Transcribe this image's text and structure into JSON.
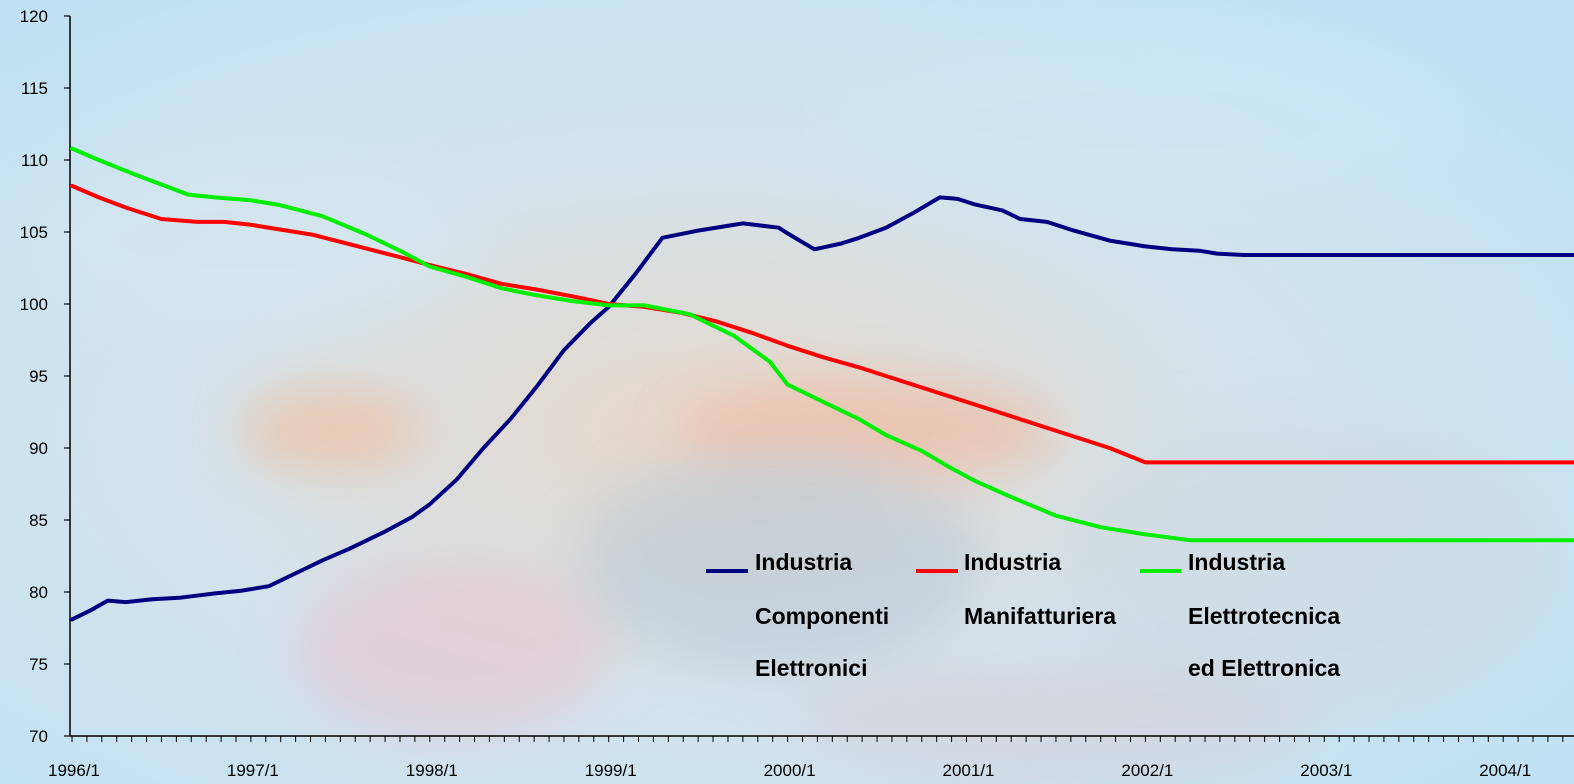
{
  "chart_data": {
    "type": "line",
    "title": "",
    "xlabel": "",
    "ylabel": "",
    "ylim": [
      70,
      120
    ],
    "y_ticks": [
      "70",
      "75",
      "80",
      "85",
      "90",
      "95",
      "100",
      "105",
      "110",
      "115",
      "120"
    ],
    "x_tick_labels": [
      "1996/1",
      "1997/1",
      "1998/1",
      "1999/1",
      "2000/1",
      "2001/1",
      "2002/1",
      "2003/1",
      "2004/1"
    ],
    "x_range": [
      1996.0,
      2004.7
    ],
    "grid": false,
    "legend_position": "bottom-center",
    "series": [
      {
        "name_lines": [
          "Industria",
          "Componenti",
          "Elettronici"
        ],
        "color": "#000080",
        "x": [
          1996.0,
          1996.1,
          1996.2,
          1996.3,
          1996.45,
          1996.6,
          1996.8,
          1996.95,
          1997.1,
          1997.3,
          1997.4,
          1997.55,
          1997.75,
          1997.9,
          1998.0,
          1998.15,
          1998.3,
          1998.45,
          1998.6,
          1998.75,
          1998.9,
          1999.0,
          1999.15,
          1999.3,
          1999.5,
          1999.75,
          1999.95,
          2000.0,
          2000.15,
          2000.3,
          2000.4,
          2000.55,
          2000.7,
          2000.85,
          2000.95,
          2001.05,
          2001.2,
          2001.3,
          2001.45,
          2001.6,
          2001.8,
          2002.0,
          2002.15,
          2002.3,
          2002.4,
          2002.55,
          2002.7,
          2002.85,
          2003.0,
          2003.15,
          2003.35,
          2003.55,
          2003.75,
          2003.9,
          2004.0,
          2004.1,
          2004.25,
          2004.4,
          2004.5,
          2004.7
        ],
        "y": [
          78.1,
          78.7,
          79.4,
          79.3,
          79.5,
          79.6,
          79.9,
          80.1,
          80.4,
          81.6,
          82.2,
          83.0,
          84.2,
          85.2,
          86.1,
          87.8,
          90.0,
          92.0,
          94.3,
          96.8,
          98.7,
          99.8,
          102.1,
          104.6,
          105.1,
          105.6,
          105.3,
          104.9,
          103.8,
          104.2,
          104.6,
          105.3,
          106.3,
          107.4,
          107.3,
          106.9,
          106.5,
          105.9,
          105.7,
          105.1,
          104.4,
          104.0,
          103.8,
          103.7,
          103.5,
          103.4,
          103.4,
          103.4,
          103.4,
          103.4,
          103.4,
          103.4,
          103.4,
          103.4,
          103.4,
          103.4,
          103.4,
          103.4,
          103.4,
          103.4
        ]
      },
      {
        "name_lines": [
          "Industria",
          "Manifatturiera"
        ],
        "color": "#ff0000",
        "x": [
          1996.0,
          1996.15,
          1996.3,
          1996.5,
          1996.7,
          1996.85,
          1997.0,
          1997.15,
          1997.35,
          1997.6,
          1997.85,
          1998.0,
          1998.2,
          1998.4,
          1998.6,
          1998.85,
          1999.0,
          1999.2,
          1999.4,
          1999.6,
          1999.8,
          2000.0,
          2000.2,
          2000.4,
          2000.6,
          2000.8,
          2001.0,
          2001.2,
          2001.4,
          2001.6,
          2001.8,
          2002.0,
          2002.2,
          2002.4,
          2002.6,
          2002.8,
          2003.0,
          2003.2,
          2003.4,
          2003.6,
          2003.8,
          2004.0,
          2004.2,
          2004.4,
          2004.55,
          2004.7
        ],
        "y": [
          108.2,
          107.4,
          106.7,
          105.9,
          105.7,
          105.7,
          105.5,
          105.2,
          104.8,
          104.0,
          103.2,
          102.7,
          102.1,
          101.4,
          101.0,
          100.4,
          100.0,
          99.8,
          99.4,
          98.8,
          98.0,
          97.1,
          96.3,
          95.6,
          94.8,
          94.0,
          93.2,
          92.4,
          91.6,
          90.8,
          90.0,
          89.0,
          89.0,
          89.0,
          89.0,
          89.0,
          89.0,
          89.0,
          89.0,
          89.0,
          89.0,
          89.0,
          89.0,
          89.0,
          89.0,
          89.0
        ]
      },
      {
        "name_lines": [
          "Industria",
          "Elettrotecnica",
          "ed Elettronica"
        ],
        "color": "#00ee00",
        "x": [
          1996.0,
          1996.15,
          1996.35,
          1996.5,
          1996.65,
          1996.8,
          1997.0,
          1997.15,
          1997.4,
          1997.65,
          1997.85,
          1998.0,
          1998.2,
          1998.4,
          1998.6,
          1998.8,
          1999.0,
          1999.2,
          1999.45,
          1999.7,
          1999.9,
          2000.0,
          2000.2,
          2000.4,
          2000.55,
          2000.75,
          2000.9,
          2001.05,
          2001.25,
          2001.5,
          2001.75,
          2002.0,
          2002.25,
          2002.5,
          2002.75,
          2003.0,
          2003.2,
          2003.4,
          2003.6,
          2003.8,
          2004.0,
          2004.2,
          2004.4,
          2004.7
        ],
        "y": [
          110.8,
          110.0,
          109.0,
          108.3,
          107.6,
          107.4,
          107.2,
          106.9,
          106.1,
          104.8,
          103.6,
          102.6,
          101.9,
          101.1,
          100.6,
          100.2,
          99.9,
          99.9,
          99.3,
          97.8,
          96.0,
          94.4,
          93.2,
          92.0,
          90.9,
          89.8,
          88.7,
          87.7,
          86.6,
          85.3,
          84.5,
          84.0,
          83.6,
          83.6,
          83.6,
          83.6,
          83.6,
          83.6,
          83.6,
          83.6,
          83.6,
          83.6,
          83.6,
          83.6
        ]
      }
    ]
  }
}
